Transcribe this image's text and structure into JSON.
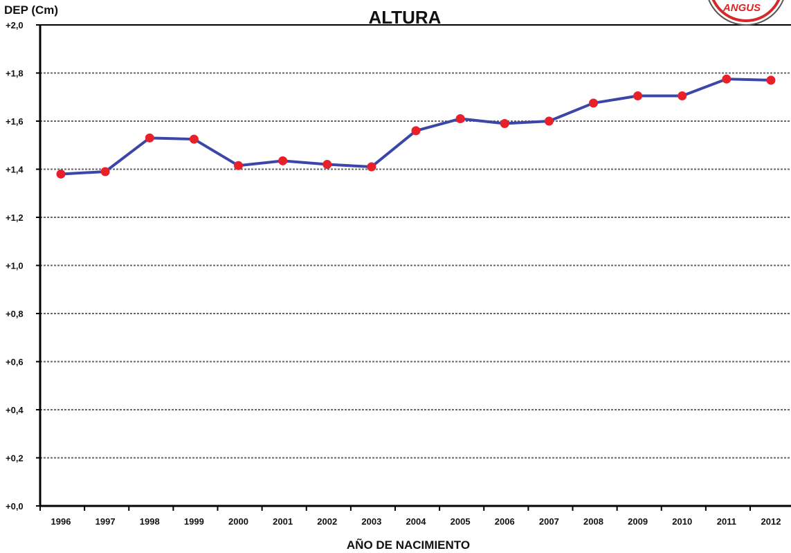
{
  "logo": {
    "text": "ANGUS",
    "color": "#d62828"
  },
  "chart_data": {
    "type": "line",
    "title": "ALTURA",
    "ylabel": "DEP (Cm)",
    "xlabel": "AÑO DE NACIMIENTO",
    "categories": [
      "1996",
      "1997",
      "1998",
      "1999",
      "2000",
      "2001",
      "2002",
      "2003",
      "2004",
      "2005",
      "2006",
      "2007",
      "2008",
      "2009",
      "2010",
      "2011",
      "2012"
    ],
    "series": [
      {
        "values": [
          1.38,
          1.39,
          1.53,
          1.525,
          1.415,
          1.435,
          1.42,
          1.41,
          1.56,
          1.61,
          1.59,
          1.6,
          1.675,
          1.705,
          1.705,
          1.775,
          1.77
        ],
        "line_color": "#3a46a8",
        "marker_color": "#e8202a"
      }
    ],
    "ylim": [
      0,
      2
    ],
    "yticks": [
      0,
      0.2,
      0.4,
      0.6,
      0.8,
      1.0,
      1.2,
      1.4,
      1.6,
      1.8,
      2.0
    ],
    "ytick_labels": [
      "+0,0",
      "+0,2",
      "+0,4",
      "+0,6",
      "+0,8",
      "+1,0",
      "+1,2",
      "+1,4",
      "+1,6",
      "+1,8",
      "+2,0"
    ],
    "grid": "horizontal-dashed",
    "legend": "none"
  }
}
